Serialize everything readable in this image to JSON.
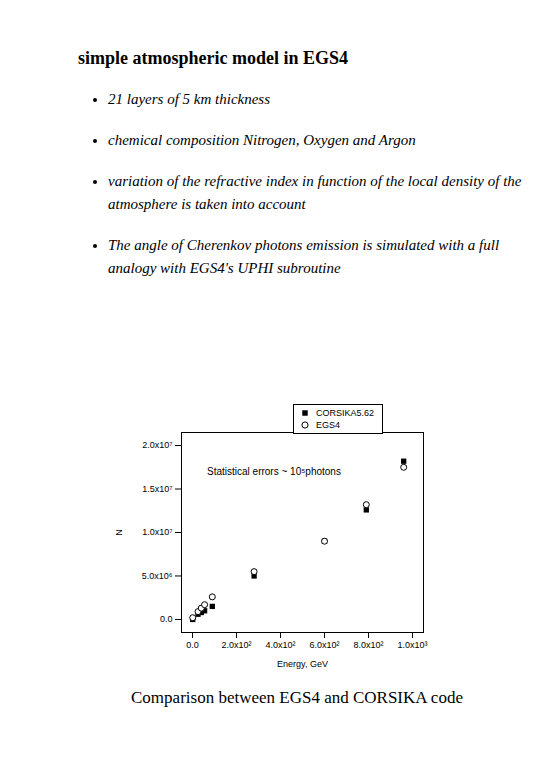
{
  "title": "simple atmospheric model in EGS4",
  "bullets": [
    "21 layers of 5 km thickness",
    "chemical composition  Nitrogen, Oxygen and Argon",
    "variation of the refractive index in function of the local density of the atmosphere is taken into account",
    "The angle of Cherenkov photons emission is simulated with a full analogy with EGS4's UPHI subroutine"
  ],
  "chart_data": {
    "type": "scatter",
    "x_label": "Energy, GeV",
    "y_label": "N",
    "annotation": "Statistical errors ~ 10⁵photons",
    "legend": "top-right",
    "grid": false,
    "series": [
      {
        "name": "CORSIKA5.62",
        "color": "#000000",
        "marker": "filled square",
        "x": [
          1,
          25,
          40,
          55,
          90,
          280,
          600,
          790,
          960
        ],
        "values": [
          0,
          600000,
          800000,
          1000000,
          1500000,
          5000000,
          9000000,
          12600000,
          18200000
        ]
      },
      {
        "name": "EGS4",
        "color": "#000000",
        "marker": "open circle",
        "x": [
          1,
          25,
          40,
          55,
          90,
          280,
          600,
          790,
          960
        ],
        "values": [
          200000,
          900000,
          1300000,
          1700000,
          2600000,
          5500000,
          9000000,
          13200000,
          17500000
        ]
      }
    ],
    "xlim": [
      -50,
      1050
    ],
    "xticks": [
      {
        "value": 0,
        "label": "0.0"
      },
      {
        "value": 200,
        "label": "2.0x10²"
      },
      {
        "value": 400,
        "label": "4.0x10²"
      },
      {
        "value": 600,
        "label": "6.0x10²"
      },
      {
        "value": 800,
        "label": "8.0x10²"
      },
      {
        "value": 1000,
        "label": "1.0x10³"
      }
    ],
    "ylim": [
      -1500000,
      21500000
    ],
    "yticks": [
      {
        "value": 0,
        "label": "0.0"
      },
      {
        "value": 5000000,
        "label": "5.0x10⁶"
      },
      {
        "value": 10000000,
        "label": "1.0x10⁷"
      },
      {
        "value": 15000000,
        "label": "1.5x10⁷"
      },
      {
        "value": 20000000,
        "label": "2.0x10⁷"
      }
    ]
  },
  "caption": "Comparison between EGS4 and CORSIKA code"
}
